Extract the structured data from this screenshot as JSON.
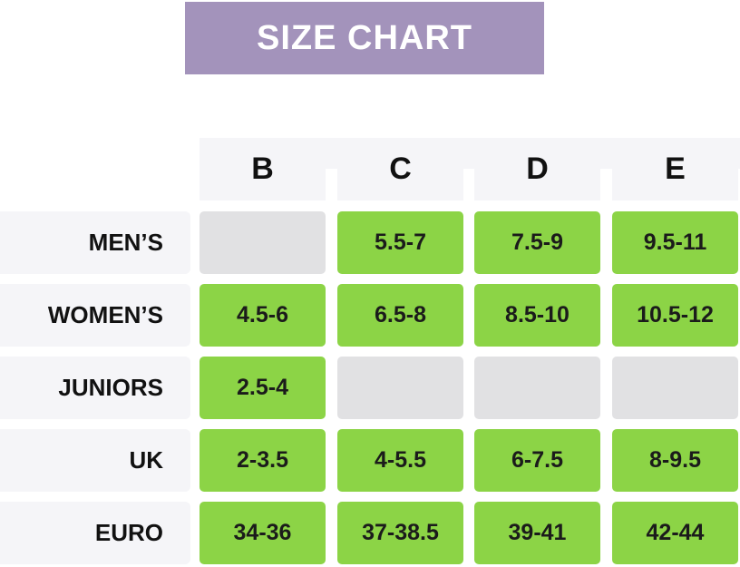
{
  "title": "SIZE CHART",
  "colors": {
    "banner": "#a393bb",
    "filled_cell": "#8cd446",
    "empty_cell": "#e1e1e3",
    "label_bg": "#f5f5f8"
  },
  "chart_data": {
    "type": "table",
    "title": "SIZE CHART",
    "columns": [
      "B",
      "C",
      "D",
      "E"
    ],
    "rows": [
      {
        "label": "MEN’S",
        "values": [
          "",
          "5.5-7",
          "7.5-9",
          "9.5-11"
        ]
      },
      {
        "label": "WOMEN’S",
        "values": [
          "4.5-6",
          "6.5-8",
          "8.5-10",
          "10.5-12"
        ]
      },
      {
        "label": "JUNIORS",
        "values": [
          "2.5-4",
          "",
          "",
          ""
        ]
      },
      {
        "label": "UK",
        "values": [
          "2-3.5",
          "4-5.5",
          "6-7.5",
          "8-9.5"
        ]
      },
      {
        "label": "EURO",
        "values": [
          "34-36",
          "37-38.5",
          "39-41",
          "42-44"
        ]
      }
    ]
  }
}
